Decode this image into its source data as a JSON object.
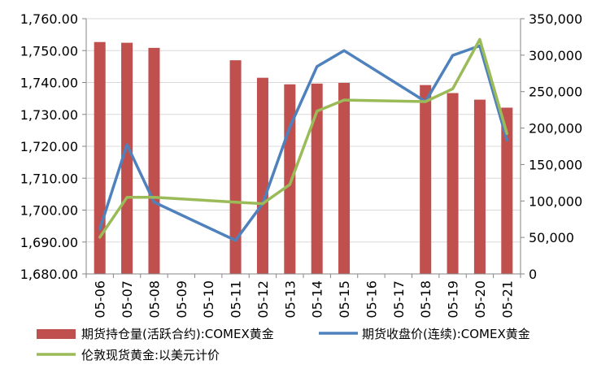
{
  "chart_data": {
    "type": "bar",
    "categories": [
      "05-06",
      "05-07",
      "05-08",
      "05-09",
      "05-10",
      "05-11",
      "05-12",
      "05-13",
      "05-14",
      "05-15",
      "05-16",
      "05-17",
      "05-18",
      "05-19",
      "05-20",
      "05-21"
    ],
    "y_left": {
      "ylim": [
        1680,
        1760
      ],
      "ticks": [
        "1,680.00",
        "1,690.00",
        "1,700.00",
        "1,710.00",
        "1,720.00",
        "1,730.00",
        "1,740.00",
        "1,750.00",
        "1,760.00"
      ],
      "grid": true
    },
    "y_right": {
      "ylim": [
        0,
        350000
      ],
      "ticks": [
        "0",
        "50,000",
        "100,000",
        "150,000",
        "200,000",
        "250,000",
        "300,000",
        "350,000"
      ]
    },
    "series": [
      {
        "name": "期货持仓量(活跃合约):COMEX黄金",
        "type": "bar",
        "axis": "right",
        "color": "#C0504D",
        "values": [
          318000,
          317000,
          310000,
          null,
          null,
          293000,
          269000,
          260000,
          261000,
          262000,
          null,
          null,
          259000,
          248000,
          239000,
          228000
        ]
      },
      {
        "name": "期货收盘价(连续):COMEX黄金",
        "type": "line",
        "axis": "left",
        "color": "#4F81BD",
        "values": [
          1694.0,
          1720.5,
          1702.5,
          null,
          null,
          1690.5,
          1702.0,
          1726.0,
          1745.0,
          1750.0,
          null,
          null,
          1734.0,
          1748.5,
          1751.5,
          1722.0
        ]
      },
      {
        "name": "伦敦现货黄金:以美元计价",
        "type": "line",
        "axis": "left",
        "color": "#9BBB59",
        "values": [
          1691.5,
          1704.0,
          1704.0,
          null,
          null,
          1702.5,
          1702.0,
          1708.0,
          1731.0,
          1734.5,
          null,
          null,
          1734.0,
          1738.0,
          1753.5,
          1724.0
        ]
      }
    ],
    "legend": "bottom",
    "legend_labels": [
      "期货持仓量(活跃合约):COMEX黄金",
      "期货收盘价(连续):COMEX黄金",
      "伦敦现货黄金:以美元计价"
    ]
  }
}
